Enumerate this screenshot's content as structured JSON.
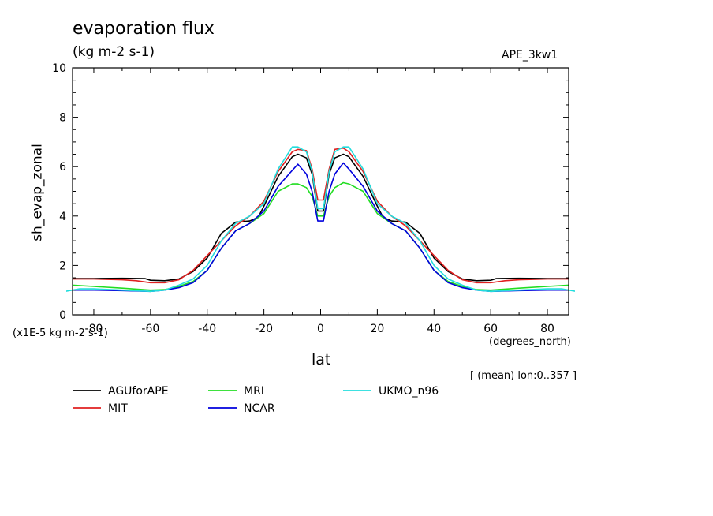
{
  "chart_data": {
    "type": "line",
    "title": "evaporation flux",
    "units_label": "(kg m-2 s-1)",
    "experiment": "APE_3kw1",
    "ylabel": "sh_evap_zonal",
    "xlabel": "lat",
    "x_units": "(degrees_north)",
    "y_scale_note": "(x1E-5 kg m-2 s-1)",
    "mean_note": "[ (mean) lon:0..357 ]",
    "xlim": [
      -87.5,
      87.5
    ],
    "ylim": [
      0,
      10
    ],
    "x_ticks": [
      "-80",
      "-60",
      "-40",
      "-20",
      "0",
      "20",
      "40",
      "60",
      "80"
    ],
    "y_ticks": [
      "0",
      "2",
      "4",
      "6",
      "8",
      "10"
    ],
    "grid": false,
    "legend_position": "bottom",
    "series": [
      {
        "name": "AGUforAPE",
        "color": "#000000",
        "points": [
          [
            -87.5,
            1.47
          ],
          [
            -80,
            1.47
          ],
          [
            -70,
            1.48
          ],
          [
            -62,
            1.47
          ],
          [
            -60,
            1.4
          ],
          [
            -55,
            1.38
          ],
          [
            -50,
            1.45
          ],
          [
            -45,
            1.75
          ],
          [
            -40,
            2.3
          ],
          [
            -35,
            3.3
          ],
          [
            -30,
            3.75
          ],
          [
            -25,
            3.8
          ],
          [
            -22,
            3.95
          ],
          [
            -20,
            4.4
          ],
          [
            -15,
            5.6
          ],
          [
            -10,
            6.4
          ],
          [
            -8,
            6.5
          ],
          [
            -5,
            6.35
          ],
          [
            -3,
            5.7
          ],
          [
            -1,
            4.2
          ],
          [
            0,
            4.2
          ],
          [
            1,
            4.2
          ],
          [
            3,
            5.7
          ],
          [
            5,
            6.35
          ],
          [
            8,
            6.5
          ],
          [
            10,
            6.4
          ],
          [
            15,
            5.6
          ],
          [
            20,
            4.4
          ],
          [
            22,
            3.95
          ],
          [
            25,
            3.8
          ],
          [
            30,
            3.75
          ],
          [
            35,
            3.3
          ],
          [
            40,
            2.3
          ],
          [
            45,
            1.75
          ],
          [
            50,
            1.45
          ],
          [
            55,
            1.38
          ],
          [
            60,
            1.4
          ],
          [
            62,
            1.47
          ],
          [
            70,
            1.48
          ],
          [
            80,
            1.47
          ],
          [
            87.5,
            1.47
          ]
        ]
      },
      {
        "name": "MIT",
        "color": "#e02020",
        "points": [
          [
            -87.5,
            1.45
          ],
          [
            -80,
            1.45
          ],
          [
            -70,
            1.42
          ],
          [
            -65,
            1.38
          ],
          [
            -60,
            1.3
          ],
          [
            -55,
            1.3
          ],
          [
            -50,
            1.42
          ],
          [
            -45,
            1.8
          ],
          [
            -40,
            2.4
          ],
          [
            -35,
            3.0
          ],
          [
            -30,
            3.6
          ],
          [
            -25,
            4.0
          ],
          [
            -20,
            4.6
          ],
          [
            -15,
            5.8
          ],
          [
            -10,
            6.6
          ],
          [
            -8,
            6.7
          ],
          [
            -5,
            6.65
          ],
          [
            -3,
            5.9
          ],
          [
            -1,
            4.65
          ],
          [
            0,
            4.65
          ],
          [
            1,
            4.65
          ],
          [
            3,
            5.9
          ],
          [
            5,
            6.7
          ],
          [
            8,
            6.75
          ],
          [
            10,
            6.6
          ],
          [
            15,
            5.8
          ],
          [
            20,
            4.6
          ],
          [
            25,
            4.0
          ],
          [
            30,
            3.6
          ],
          [
            35,
            3.0
          ],
          [
            40,
            2.4
          ],
          [
            45,
            1.8
          ],
          [
            50,
            1.42
          ],
          [
            55,
            1.3
          ],
          [
            60,
            1.3
          ],
          [
            65,
            1.38
          ],
          [
            70,
            1.42
          ],
          [
            80,
            1.45
          ],
          [
            87.5,
            1.45
          ]
        ]
      },
      {
        "name": "MRI",
        "color": "#22dd22",
        "points": [
          [
            -87.5,
            1.2
          ],
          [
            -80,
            1.15
          ],
          [
            -70,
            1.08
          ],
          [
            -60,
            1.0
          ],
          [
            -55,
            1.02
          ],
          [
            -50,
            1.15
          ],
          [
            -45,
            1.35
          ],
          [
            -40,
            1.8
          ],
          [
            -35,
            2.7
          ],
          [
            -30,
            3.4
          ],
          [
            -25,
            3.7
          ],
          [
            -20,
            4.1
          ],
          [
            -15,
            5.0
          ],
          [
            -10,
            5.3
          ],
          [
            -8,
            5.3
          ],
          [
            -5,
            5.15
          ],
          [
            -3,
            4.8
          ],
          [
            -1,
            4.0
          ],
          [
            0,
            4.0
          ],
          [
            1,
            4.0
          ],
          [
            3,
            4.8
          ],
          [
            5,
            5.15
          ],
          [
            8,
            5.35
          ],
          [
            10,
            5.3
          ],
          [
            15,
            5.0
          ],
          [
            20,
            4.1
          ],
          [
            25,
            3.7
          ],
          [
            30,
            3.4
          ],
          [
            35,
            2.7
          ],
          [
            40,
            1.8
          ],
          [
            45,
            1.35
          ],
          [
            50,
            1.15
          ],
          [
            55,
            1.02
          ],
          [
            60,
            1.0
          ],
          [
            70,
            1.08
          ],
          [
            80,
            1.15
          ],
          [
            87.5,
            1.2
          ]
        ]
      },
      {
        "name": "NCAR",
        "color": "#0000dd",
        "points": [
          [
            -87.5,
            1.0
          ],
          [
            -80,
            1.0
          ],
          [
            -70,
            0.98
          ],
          [
            -60,
            0.95
          ],
          [
            -55,
            1.0
          ],
          [
            -50,
            1.1
          ],
          [
            -45,
            1.3
          ],
          [
            -40,
            1.8
          ],
          [
            -35,
            2.7
          ],
          [
            -30,
            3.4
          ],
          [
            -25,
            3.7
          ],
          [
            -20,
            4.2
          ],
          [
            -15,
            5.2
          ],
          [
            -10,
            5.85
          ],
          [
            -8,
            6.1
          ],
          [
            -5,
            5.7
          ],
          [
            -3,
            5.0
          ],
          [
            -1,
            3.8
          ],
          [
            0,
            3.8
          ],
          [
            1,
            3.8
          ],
          [
            3,
            5.0
          ],
          [
            5,
            5.7
          ],
          [
            8,
            6.15
          ],
          [
            10,
            5.9
          ],
          [
            15,
            5.2
          ],
          [
            20,
            4.2
          ],
          [
            25,
            3.7
          ],
          [
            30,
            3.4
          ],
          [
            35,
            2.7
          ],
          [
            40,
            1.8
          ],
          [
            45,
            1.3
          ],
          [
            50,
            1.1
          ],
          [
            55,
            1.0
          ],
          [
            60,
            0.95
          ],
          [
            70,
            0.98
          ],
          [
            80,
            1.0
          ],
          [
            87.5,
            1.0
          ]
        ]
      },
      {
        "name": "UKMO_n96",
        "color": "#22dddd",
        "points": [
          [
            -90,
            0.95
          ],
          [
            -85,
            1.05
          ],
          [
            -80,
            1.05
          ],
          [
            -70,
            1.0
          ],
          [
            -60,
            0.95
          ],
          [
            -55,
            1.0
          ],
          [
            -50,
            1.2
          ],
          [
            -45,
            1.45
          ],
          [
            -40,
            2.0
          ],
          [
            -35,
            3.0
          ],
          [
            -30,
            3.7
          ],
          [
            -25,
            4.0
          ],
          [
            -20,
            4.5
          ],
          [
            -15,
            5.9
          ],
          [
            -10,
            6.8
          ],
          [
            -8,
            6.8
          ],
          [
            -5,
            6.6
          ],
          [
            -3,
            5.8
          ],
          [
            -1,
            4.3
          ],
          [
            0,
            4.3
          ],
          [
            1,
            4.3
          ],
          [
            3,
            5.8
          ],
          [
            5,
            6.6
          ],
          [
            8,
            6.8
          ],
          [
            10,
            6.8
          ],
          [
            15,
            5.9
          ],
          [
            20,
            4.5
          ],
          [
            25,
            4.0
          ],
          [
            30,
            3.7
          ],
          [
            35,
            3.0
          ],
          [
            40,
            2.0
          ],
          [
            45,
            1.45
          ],
          [
            50,
            1.2
          ],
          [
            55,
            1.0
          ],
          [
            60,
            0.95
          ],
          [
            70,
            1.0
          ],
          [
            80,
            1.05
          ],
          [
            85,
            1.05
          ],
          [
            90,
            0.95
          ]
        ]
      }
    ]
  }
}
